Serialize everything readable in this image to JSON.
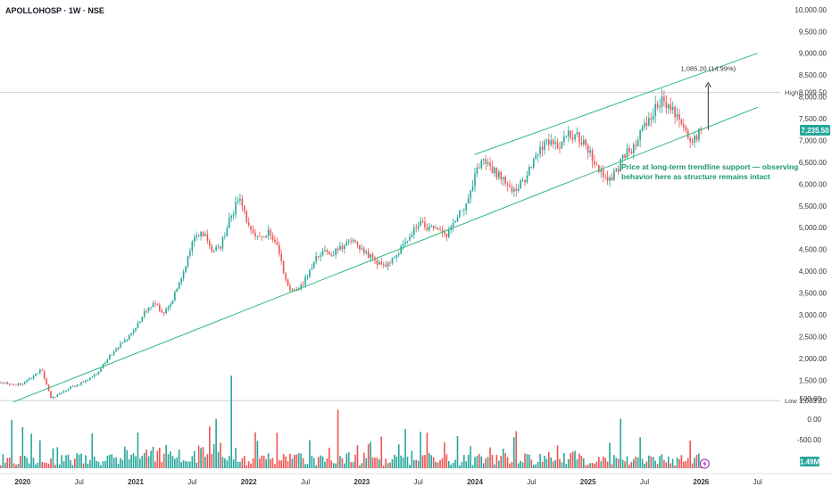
{
  "header": {
    "symbol_title": "APOLLOHOSP · 1W · NSE"
  },
  "colors": {
    "up": "#26a69a",
    "down": "#ef5350",
    "trendline": "#2cb77a",
    "annotation_text": "#1a9a68",
    "axis_text": "#333333",
    "price_badge": "#26a69a",
    "volume_badge": "#26a69a",
    "vol_up": "#26a69a",
    "vol_down": "#ef5350"
  },
  "chart_data": [
    {
      "type": "candlestick",
      "title": "APOLLOHOSP · 1W · NSE",
      "price_axis": {
        "ticks": [
          1500,
          2000,
          2500,
          3000,
          3500,
          4000,
          4500,
          5000,
          5500,
          6000,
          6500,
          7000,
          7500,
          8000,
          8500,
          9000,
          9500,
          10000
        ],
        "tick_labels": [
          "1,500.00",
          "2,000.00",
          "2,500.00",
          "3,000.00",
          "3,500.00",
          "4,000.00",
          "4,500.00",
          "5,000.00",
          "5,500.00",
          "6,000.00",
          "6,500.00",
          "7,000.00",
          "7,500.00",
          "8,000.00",
          "8,500.00",
          "9,000.00",
          "9,500.00",
          "10,000.00"
        ],
        "range": [
          975,
          10160
        ]
      },
      "time_axis": {
        "labels": [
          "2020",
          "Jul",
          "2021",
          "Jul",
          "2022",
          "Jul",
          "2023",
          "Jul",
          "2024",
          "Jul",
          "2025",
          "Jul",
          "2026",
          "Jul"
        ],
        "dates": [
          "2020-01",
          "2020-07",
          "2021-01",
          "2021-07",
          "2022-01",
          "2022-07",
          "2023-01",
          "2023-07",
          "2024-01",
          "2024-07",
          "2025-01",
          "2025-07",
          "2026-01",
          "2026-07"
        ]
      },
      "high_line": {
        "label": "High",
        "value": 8099.5,
        "value_label": "8,099.50"
      },
      "low_line": {
        "label": "Low",
        "value": 1033.2,
        "value_label": "1,033.20"
      },
      "last_price": {
        "value": 7235.5,
        "value_label": "7,235.50"
      },
      "price_path": [
        [
          "2019-10",
          1460
        ],
        [
          "2019-12",
          1400
        ],
        [
          "2020-01",
          1430
        ],
        [
          "2020-02",
          1560
        ],
        [
          "2020-03",
          1750
        ],
        [
          "2020-04",
          1080
        ],
        [
          "2020-05",
          1200
        ],
        [
          "2020-06",
          1330
        ],
        [
          "2020-07",
          1400
        ],
        [
          "2020-08",
          1540
        ],
        [
          "2020-09",
          1680
        ],
        [
          "2020-10",
          2000
        ],
        [
          "2020-11",
          2250
        ],
        [
          "2020-12",
          2450
        ],
        [
          "2021-01",
          2700
        ],
        [
          "2021-02",
          3100
        ],
        [
          "2021-03",
          3250
        ],
        [
          "2021-04",
          3050
        ],
        [
          "2021-05",
          3400
        ],
        [
          "2021-06",
          3900
        ],
        [
          "2021-07",
          4700
        ],
        [
          "2021-08",
          4950
        ],
        [
          "2021-09",
          4500
        ],
        [
          "2021-10",
          4600
        ],
        [
          "2021-11",
          5200
        ],
        [
          "2021-12",
          5700
        ],
        [
          "2022-01",
          5000
        ],
        [
          "2022-02",
          4700
        ],
        [
          "2022-03",
          4900
        ],
        [
          "2022-04",
          4600
        ],
        [
          "2022-05",
          3700
        ],
        [
          "2022-06",
          3500
        ],
        [
          "2022-07",
          3800
        ],
        [
          "2022-08",
          4300
        ],
        [
          "2022-09",
          4500
        ],
        [
          "2022-10",
          4400
        ],
        [
          "2022-11",
          4600
        ],
        [
          "2022-12",
          4800
        ],
        [
          "2023-01",
          4500
        ],
        [
          "2023-02",
          4300
        ],
        [
          "2023-03",
          4150
        ],
        [
          "2023-04",
          4200
        ],
        [
          "2023-05",
          4500
        ],
        [
          "2023-06",
          4800
        ],
        [
          "2023-07",
          5100
        ],
        [
          "2023-08",
          5000
        ],
        [
          "2023-09",
          4900
        ],
        [
          "2023-10",
          4800
        ],
        [
          "2023-11",
          5200
        ],
        [
          "2023-12",
          5500
        ],
        [
          "2024-01",
          6200
        ],
        [
          "2024-02",
          6600
        ],
        [
          "2024-03",
          6300
        ],
        [
          "2024-04",
          6100
        ],
        [
          "2024-05",
          5900
        ],
        [
          "2024-06",
          6000
        ],
        [
          "2024-07",
          6400
        ],
        [
          "2024-08",
          6800
        ],
        [
          "2024-09",
          7050
        ],
        [
          "2024-10",
          6900
        ],
        [
          "2024-11",
          7150
        ],
        [
          "2024-12",
          7100
        ],
        [
          "2025-01",
          6800
        ],
        [
          "2025-02",
          6400
        ],
        [
          "2025-03",
          6050
        ],
        [
          "2025-04",
          6300
        ],
        [
          "2025-05",
          6700
        ],
        [
          "2025-06",
          6900
        ],
        [
          "2025-07",
          7300
        ],
        [
          "2025-08",
          7700
        ],
        [
          "2025-09",
          7900
        ],
        [
          "2025-10",
          7700
        ],
        [
          "2025-11",
          7300
        ],
        [
          "2025-12",
          7000
        ],
        [
          "2026-01",
          7235
        ]
      ],
      "volume_axis": {
        "ticks": [
          -500,
          0,
          500
        ],
        "tick_labels": [
          "-500.00",
          "0.00",
          "500.00"
        ],
        "badge": "1.49M"
      },
      "trendlines": [
        {
          "name": "support",
          "from": [
            "2019-12",
            1000
          ],
          "to": [
            "2026-07",
            7760
          ]
        },
        {
          "name": "resistance",
          "from": [
            "2024-01",
            6680
          ],
          "to": [
            "2026-07",
            9000
          ]
        }
      ],
      "measure": {
        "label": "1,085.20 (14.99%)",
        "from_value": 7240,
        "to_value": 8325,
        "date": "2026-01"
      },
      "annotation": {
        "lines": [
          "Price at long-term trendline support — observing",
          "behavior here as structure remains intact"
        ]
      }
    }
  ]
}
